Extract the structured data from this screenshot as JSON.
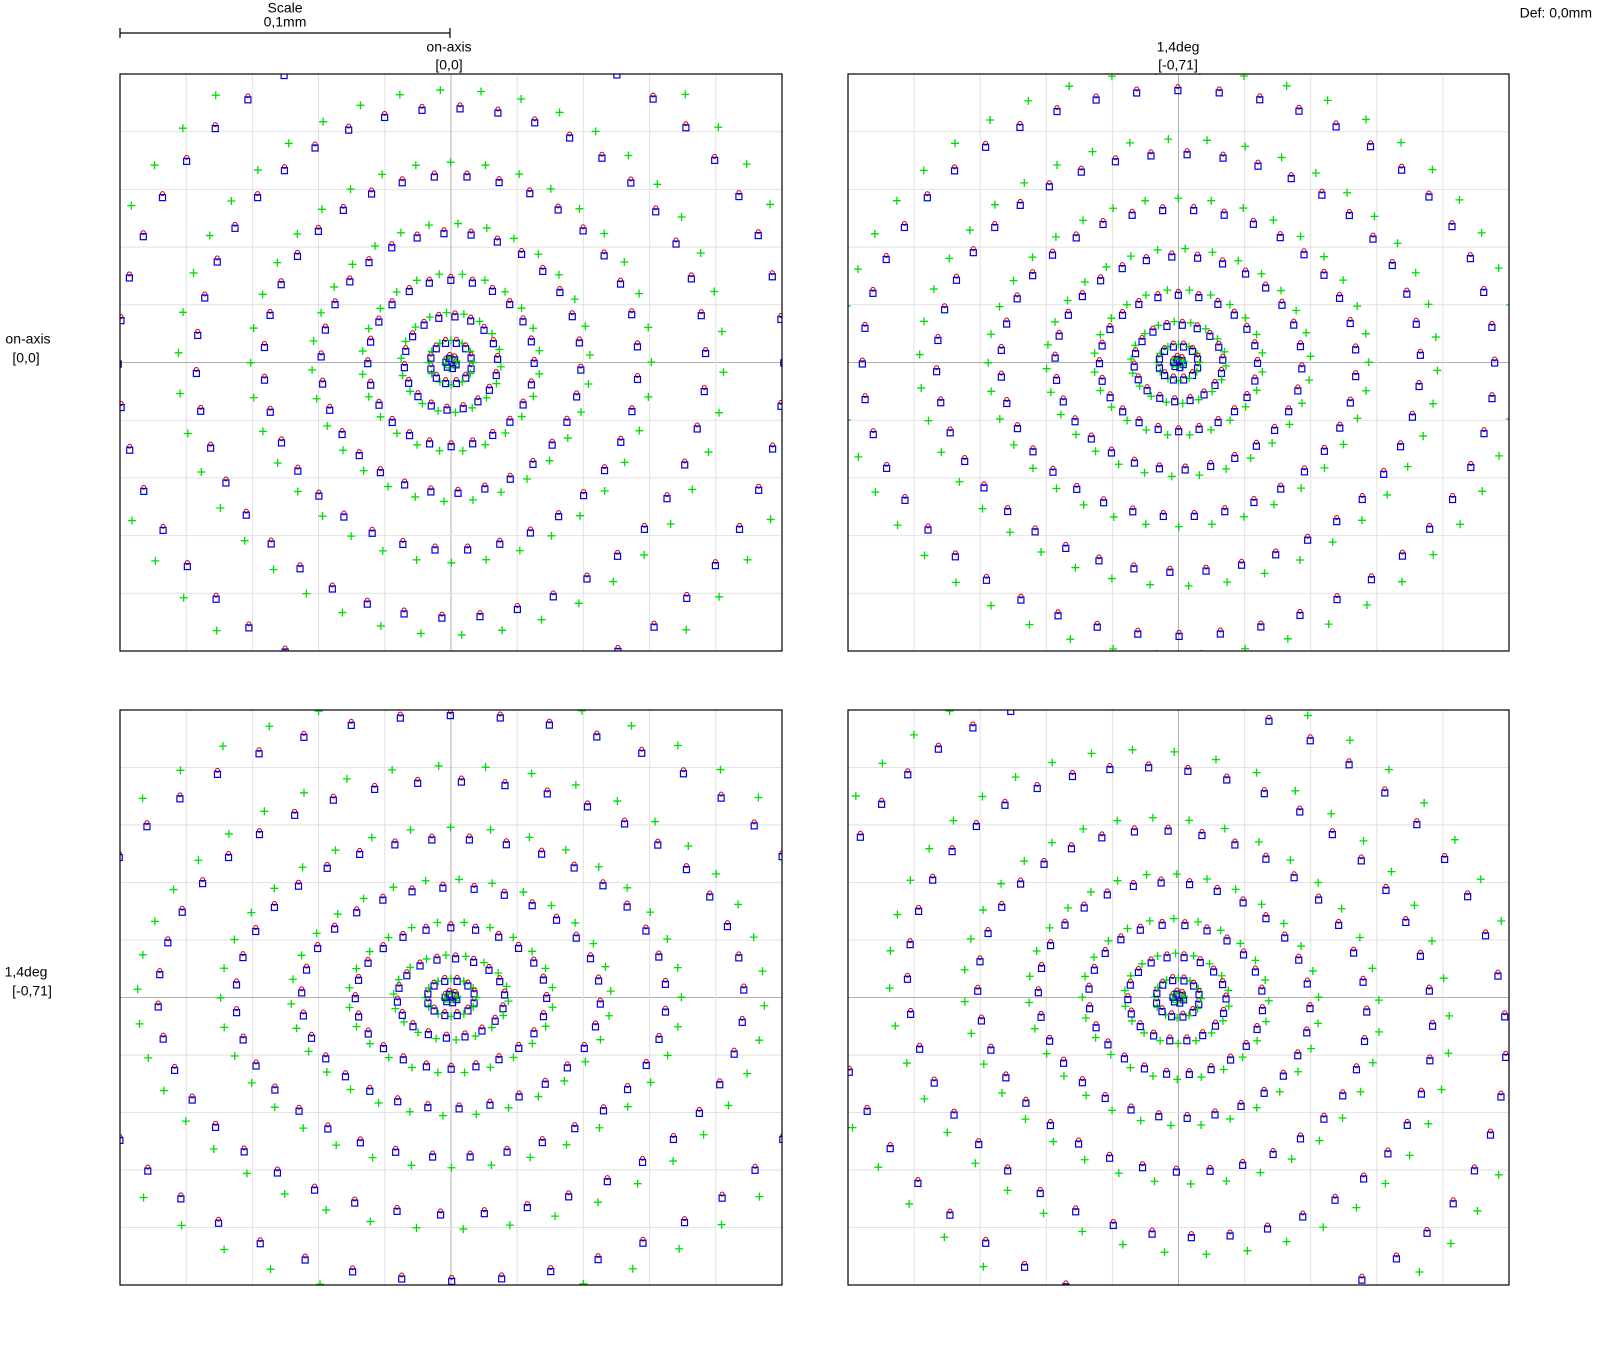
{
  "header": {
    "scale_label": "Scale",
    "scale_value": "0,1mm",
    "defocus": "Def: 0,0mm"
  },
  "columns": [
    {
      "label": "on-axis",
      "coords": "[0,0]"
    },
    {
      "label": "1,4deg",
      "coords": "[-0,71]"
    }
  ],
  "rows": [
    {
      "label": "on-axis",
      "coords": "[0,0]"
    },
    {
      "label": "1,4deg",
      "coords": "[-0,71]"
    }
  ]
}
